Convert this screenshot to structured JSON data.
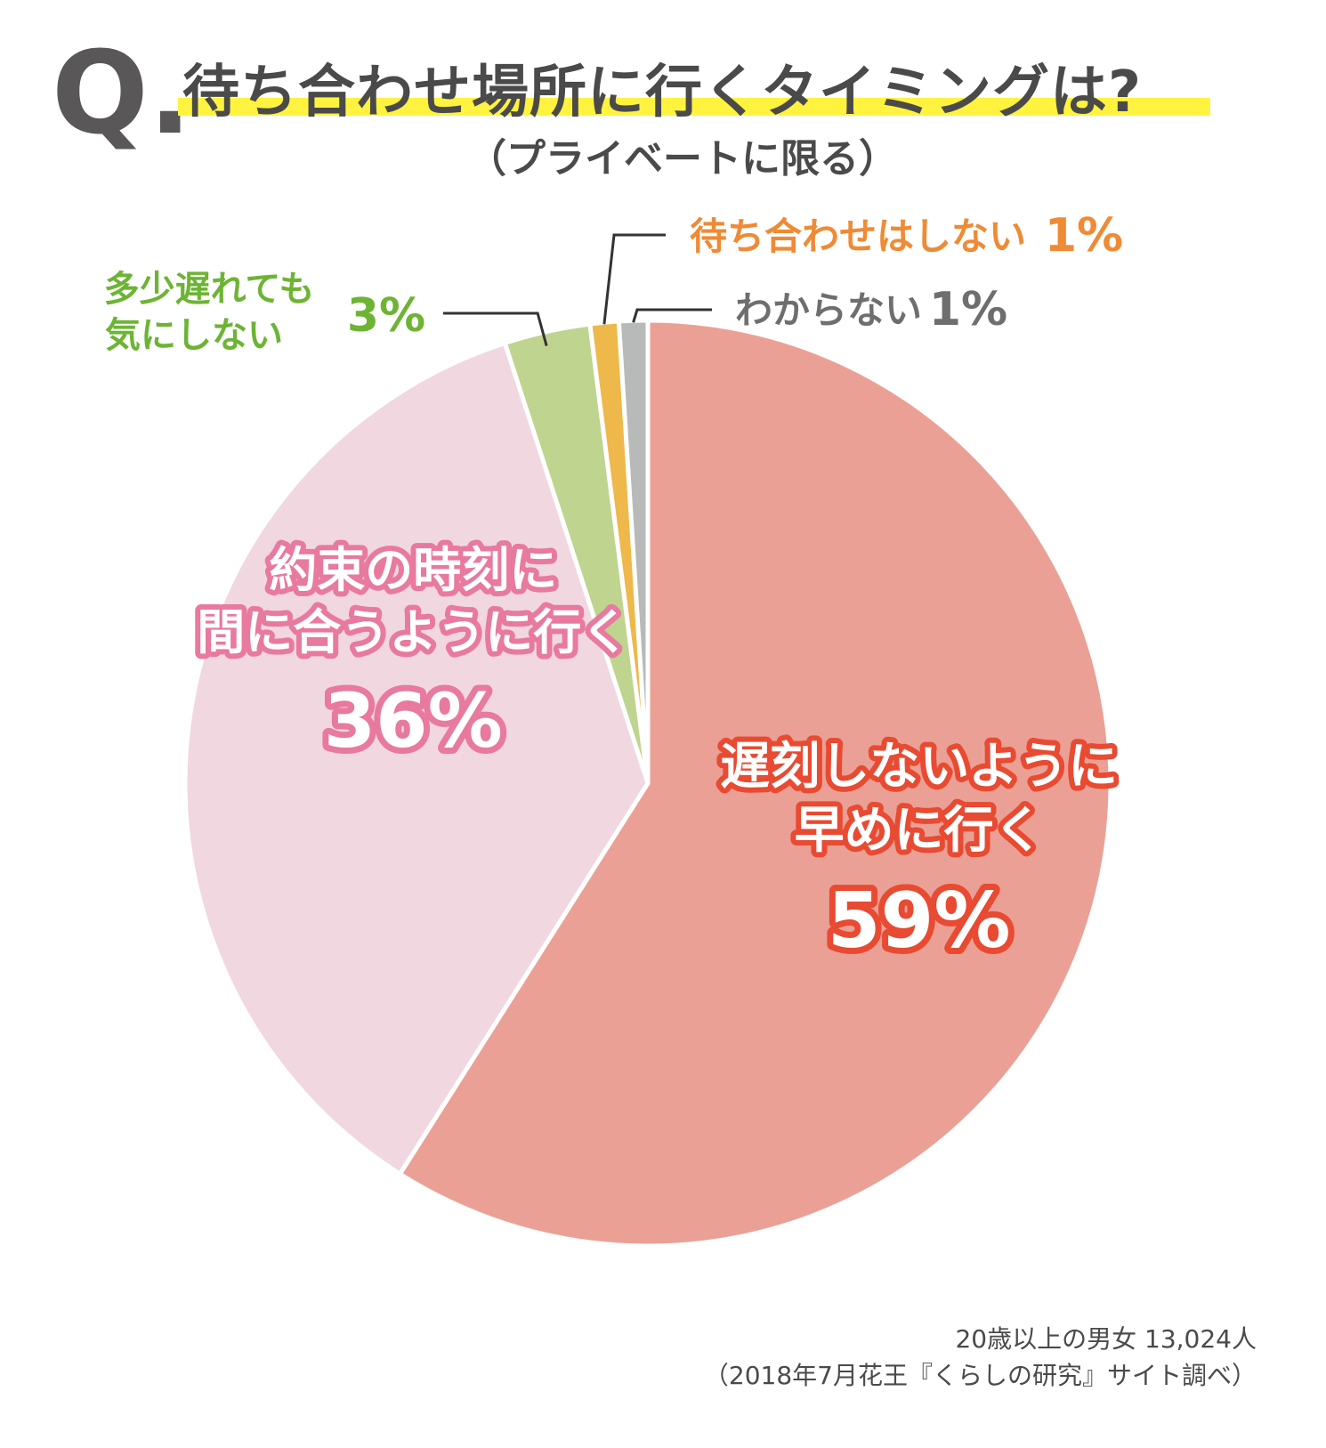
{
  "header": {
    "q_mark": "Q.",
    "title": "待ち合わせ場所に行くタイミングは?",
    "subtitle": "（プライベートに限る）"
  },
  "chart_data": {
    "type": "pie",
    "slices": [
      {
        "label_lines": [
          "遅刻しないように",
          "早めに行く"
        ],
        "value": 59,
        "pct_label": "59%",
        "color": "#eba095",
        "text_color": "#e84a32",
        "placement": "inside"
      },
      {
        "label_lines": [
          "約束の時刻に",
          "間に合うように行く"
        ],
        "value": 36,
        "pct_label": "36%",
        "color": "#f1d7e0",
        "text_color": "#e8799f",
        "placement": "inside"
      },
      {
        "label_lines": [
          "多少遅れても",
          "気にしない"
        ],
        "value": 3,
        "pct_label": "3%",
        "color": "#bfd48f",
        "text_color": "#6db434",
        "placement": "outside"
      },
      {
        "label_lines": [
          "待ち合わせはしない"
        ],
        "value": 1,
        "pct_label": "1%",
        "color": "#eeb84a",
        "text_color": "#ef8a35",
        "placement": "outside"
      },
      {
        "label_lines": [
          "わからない"
        ],
        "value": 1,
        "pct_label": "1%",
        "color": "#b8b9b9",
        "text_color": "#6e6e6e",
        "placement": "outside"
      }
    ]
  },
  "footer": {
    "sample": "20歳以上の男女 13,024人",
    "source": "（2018年7月花王『くらしの研究』サイト調べ）"
  }
}
